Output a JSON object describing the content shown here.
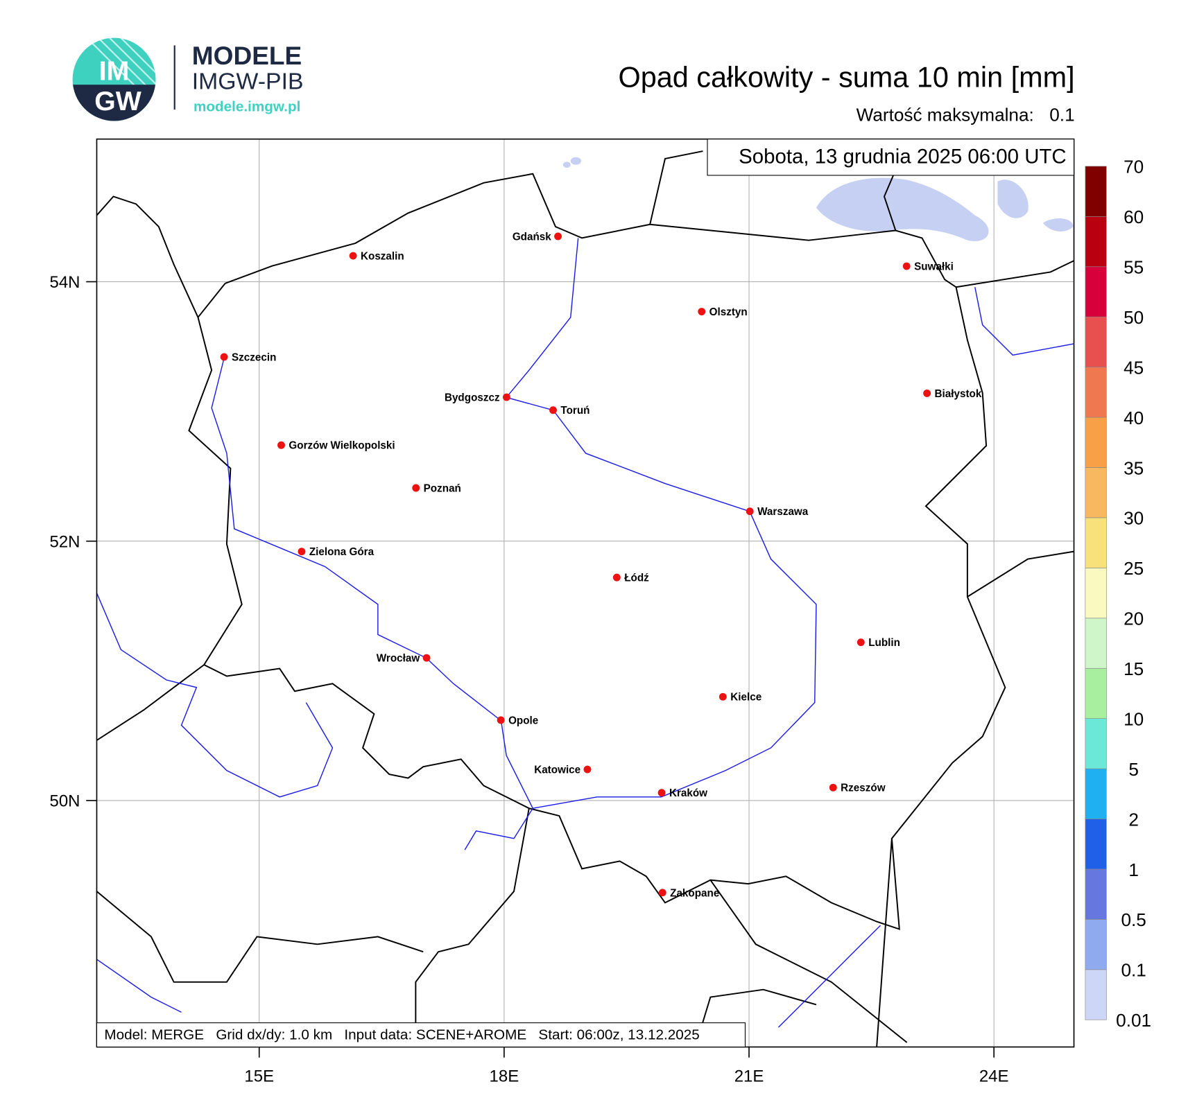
{
  "header": {
    "logo_badge": [
      "IM",
      "GW"
    ],
    "logo_top": "MODELE",
    "logo_mid": "IMGW-PIB",
    "logo_url": "modele.imgw.pl",
    "title": "Opad całkowity - suma 10 min [mm]",
    "max_label": "Wartość maksymalna:",
    "max_value": 0.1
  },
  "map": {
    "date": "Sobota, 13 grudnia 2025 06:00 UTC",
    "footer": "Model: MERGE   Grid dx/dy: 1.0 km   Input data: SCENE+AROME   Start: 06:00z, 13.12.2025",
    "lon_range": [
      13.01,
      24.98
    ],
    "lat_range": [
      48.1,
      55.1
    ],
    "lon_ticks": [
      {
        "value": 15,
        "label": "15E"
      },
      {
        "value": 18,
        "label": "18E"
      },
      {
        "value": 21,
        "label": "21E"
      },
      {
        "value": 24,
        "label": "24E"
      }
    ],
    "lat_ticks": [
      {
        "value": 54,
        "label": "54N"
      },
      {
        "value": 52,
        "label": "52N"
      },
      {
        "value": 50,
        "label": "50N"
      }
    ],
    "cities": [
      {
        "name": "Gdańsk",
        "lon": 18.66,
        "lat": 54.35
      },
      {
        "name": "Koszalin",
        "lon": 16.15,
        "lat": 54.2
      },
      {
        "name": "Suwałki",
        "lon": 22.93,
        "lat": 54.12
      },
      {
        "name": "Olsztyn",
        "lon": 20.42,
        "lat": 53.77
      },
      {
        "name": "Szczecin",
        "lon": 14.57,
        "lat": 53.42
      },
      {
        "name": "Bydgoszcz",
        "lon": 18.03,
        "lat": 53.11
      },
      {
        "name": "Toruń",
        "lon": 18.6,
        "lat": 53.01
      },
      {
        "name": "Białystok",
        "lon": 23.18,
        "lat": 53.14
      },
      {
        "name": "Gorzów Wielkopolski",
        "lon": 15.27,
        "lat": 52.74
      },
      {
        "name": "Poznań",
        "lon": 16.92,
        "lat": 52.41
      },
      {
        "name": "Warszawa",
        "lon": 21.01,
        "lat": 52.23
      },
      {
        "name": "Zielona Góra",
        "lon": 15.52,
        "lat": 51.92
      },
      {
        "name": "Łódź",
        "lon": 19.38,
        "lat": 51.72
      },
      {
        "name": "Lublin",
        "lon": 22.37,
        "lat": 51.22
      },
      {
        "name": "Wrocław",
        "lon": 17.05,
        "lat": 51.1
      },
      {
        "name": "Kielce",
        "lon": 20.68,
        "lat": 50.8
      },
      {
        "name": "Opole",
        "lon": 17.96,
        "lat": 50.62
      },
      {
        "name": "Katowice",
        "lon": 19.02,
        "lat": 50.24
      },
      {
        "name": "Kraków",
        "lon": 19.93,
        "lat": 50.06
      },
      {
        "name": "Rzeszów",
        "lon": 22.03,
        "lat": 50.1
      },
      {
        "name": "Zakopane",
        "lon": 19.94,
        "lat": 49.29
      }
    ]
  },
  "colorbar": {
    "levels": [
      0.01,
      0.1,
      0.5,
      1,
      2,
      5,
      10,
      15,
      20,
      25,
      30,
      35,
      40,
      45,
      50,
      55,
      60,
      70
    ],
    "colors": [
      "#cdd6f6",
      "#90aaf0",
      "#6678e0",
      "#2060e8",
      "#1eb0f0",
      "#6ce8d8",
      "#a8f0a0",
      "#cff6c8",
      "#fafac0",
      "#f8e07a",
      "#f8b860",
      "#f8a048",
      "#f07850",
      "#e85050",
      "#d8003a",
      "#b80010",
      "#800000"
    ]
  }
}
